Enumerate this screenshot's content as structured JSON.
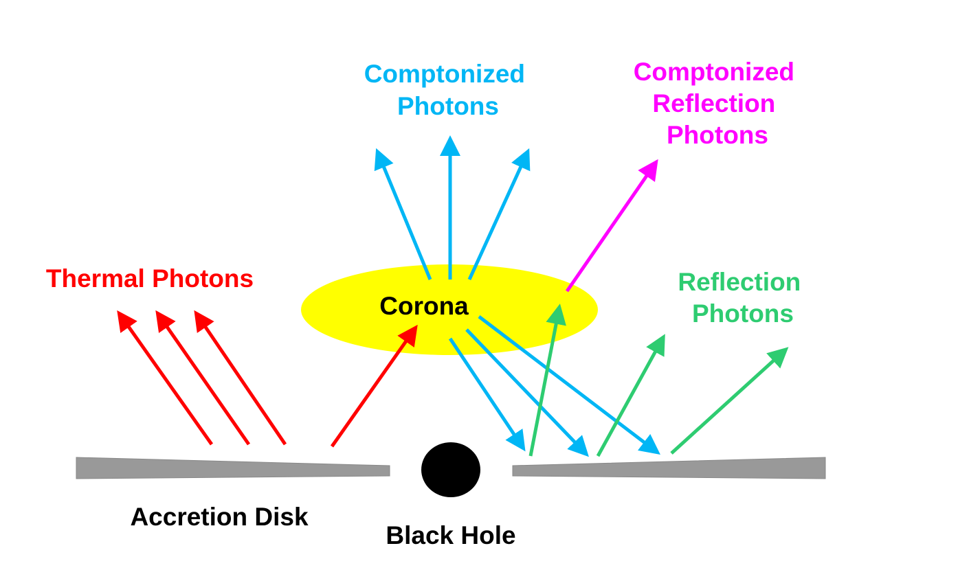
{
  "labels": {
    "comptonized": [
      "Comptonized",
      "Photons"
    ],
    "comptonized_reflection": [
      "Comptonized",
      "Reflection",
      "Photons"
    ],
    "thermal": "Thermal Photons",
    "reflection": [
      "Reflection",
      "Photons"
    ],
    "corona": "Corona",
    "accretion_disk": "Accretion Disk",
    "black_hole": "Black Hole"
  },
  "colors": {
    "thermal": "#ff0000",
    "comptonized": "#00b6f5",
    "comptonized_reflection": "#ff00ff",
    "reflection": "#2ecc71",
    "corona": "#ffff00",
    "disk": "#999999",
    "black_hole": "#000000",
    "text": "#000000"
  }
}
